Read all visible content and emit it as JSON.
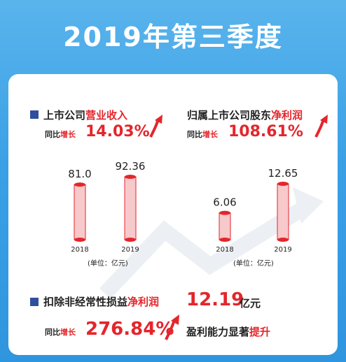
{
  "title": "2019年第三季度",
  "left": {
    "label_a": "上市公司",
    "label_b": "营业收入",
    "yoy_a": "同比",
    "yoy_b": "增长",
    "growth": "14.03%",
    "unit": "(单位：亿元)"
  },
  "right": {
    "label_a": "归属上市公司股东",
    "label_b": "净利润",
    "yoy_a": "同比",
    "yoy_b": "增长",
    "growth": "108.61%",
    "unit": "(单位：亿元)"
  },
  "bottom": {
    "label_a": "扣除非经常性损益",
    "label_b": "净利润",
    "amount": "12.19",
    "amount_unit": "亿元",
    "yoy_a": "同比",
    "yoy_b": "增长",
    "growth": "276.84%",
    "note_a": "盈利能力显著",
    "note_b": "提升"
  },
  "chart_data": [
    {
      "type": "bar",
      "categories": [
        "2018",
        "2019"
      ],
      "values": [
        81.0,
        92.36
      ],
      "value_labels": [
        "81.0",
        "92.36"
      ],
      "ylabel": "(单位：亿元)",
      "colors": [
        "#e3262c"
      ]
    },
    {
      "type": "bar",
      "categories": [
        "2018",
        "2019"
      ],
      "values": [
        6.06,
        12.65
      ],
      "value_labels": [
        "6.06",
        "12.65"
      ],
      "ylabel": "(单位：亿元)",
      "colors": [
        "#e3262c"
      ]
    }
  ],
  "colors": {
    "accent": "#e3262c",
    "bullet": "#2f4f9e",
    "background": "#3aa0e6"
  }
}
